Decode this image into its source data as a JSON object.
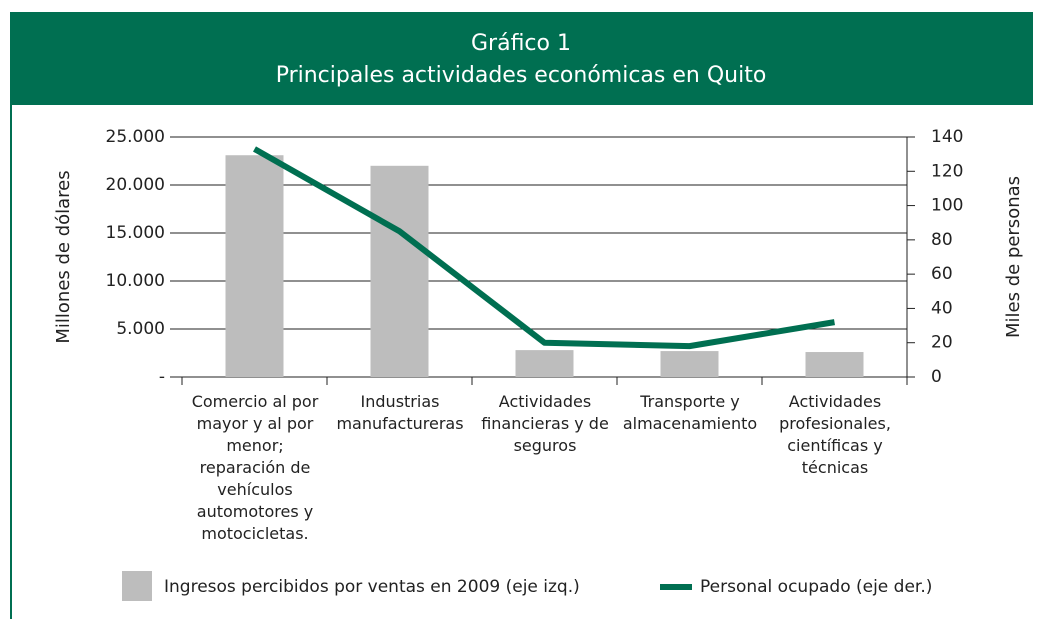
{
  "chart_data": {
    "type": "bar",
    "title": "Gráfico 1",
    "subtitle": "Principales actividades económicas en Quito",
    "y_label": "Millones de dólares",
    "y2_label": "Miles de personas",
    "categories": [
      "Comercio al por mayor y al por menor; reparación de vehículos automotores y motocicletas.",
      "Industrias manufactureras",
      "Actividades financieras y de seguros",
      "Transporte y almacenamiento",
      "Actividades profesionales, científicas y técnicas"
    ],
    "series": [
      {
        "name": "Ingresos percibidos por ventas en 2009 (eje izq.)",
        "type": "bar",
        "color": "#bdbdbd",
        "values": [
          23100,
          22000,
          2800,
          2700,
          2600
        ]
      },
      {
        "name": "Personal ocupado (eje der.)",
        "type": "line",
        "color": "#006f51",
        "axis": "y2",
        "values": [
          133,
          85,
          20,
          18,
          32
        ]
      }
    ],
    "ylim": [
      0,
      25000
    ],
    "yticks": [
      {
        "value": 0,
        "label": "-"
      },
      {
        "value": 5000,
        "label": "5.000"
      },
      {
        "value": 10000,
        "label": "10.000"
      },
      {
        "value": 15000,
        "label": "15.000"
      },
      {
        "value": 20000,
        "label": "20.000"
      },
      {
        "value": 25000,
        "label": "25.000"
      }
    ],
    "y2lim": [
      0,
      140
    ],
    "y2ticks": [
      0,
      20,
      40,
      60,
      80,
      100,
      120,
      140
    ],
    "grid": true
  }
}
